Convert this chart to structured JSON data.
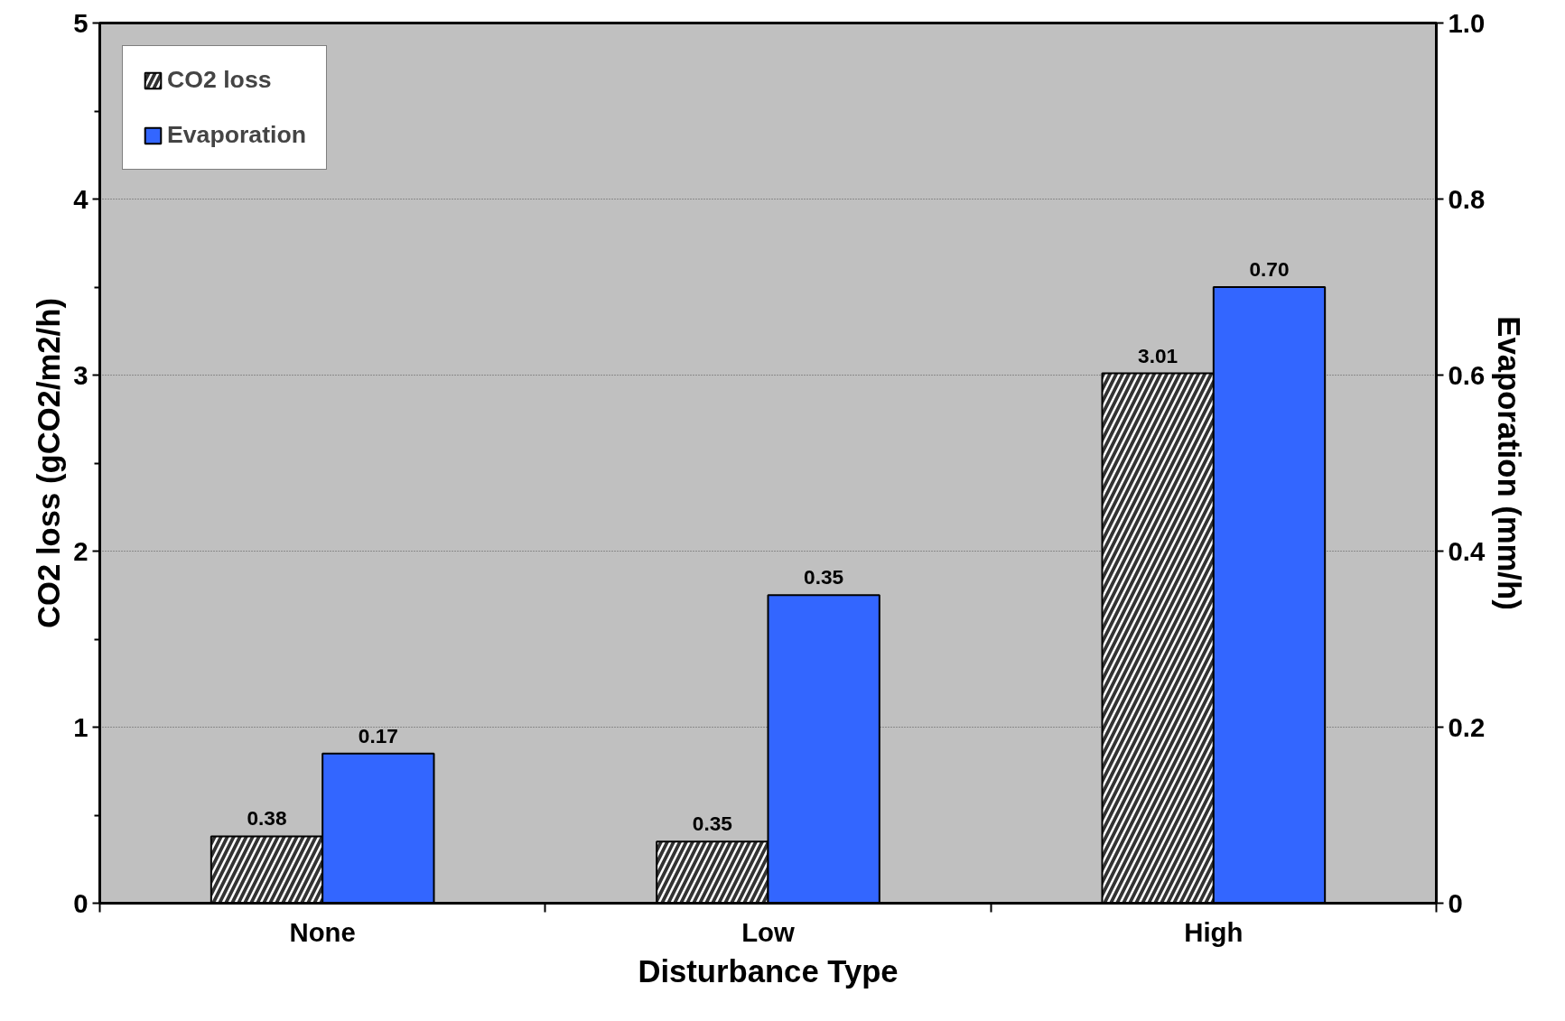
{
  "chart_data": {
    "type": "bar",
    "xlabel": "Disturbance Type",
    "ylabel": "CO2 loss (gCO2/m2/h)",
    "y2label": "Evaporation (mm/h)",
    "categories": [
      "None",
      "Low",
      "High"
    ],
    "series": [
      {
        "name": "CO2 loss",
        "color": "#333333",
        "values": [
          0.38,
          0.35,
          3.01
        ],
        "value_labels": [
          "0.38",
          "0.35",
          "3.01"
        ]
      },
      {
        "name": "Evaporation",
        "color": "#3366ff",
        "values": [
          0.17,
          0.35,
          0.7
        ],
        "value_labels": [
          "0.17",
          "0.35",
          "0.70"
        ],
        "axis": "y2"
      }
    ],
    "ylim": [
      0,
      5
    ],
    "yticks": [
      0,
      {
        "value": 0.5,
        "label": null
      },
      1,
      {
        "value": 1.5,
        "label": null
      },
      2,
      {
        "value": 2.5,
        "label": null
      },
      3,
      {
        "value": 3.5,
        "label": null
      },
      4,
      {
        "value": 4.5,
        "label": null
      },
      5
    ],
    "y2lim": [
      0,
      1.0
    ],
    "y2ticks": [
      0,
      {
        "value": 0.2,
        "label": "0.2"
      },
      {
        "value": 0.4,
        "label": "0.4"
      },
      {
        "value": 0.6,
        "label": "0.6"
      },
      {
        "value": 0.8,
        "label": "0.8"
      },
      {
        "value": 1.0,
        "label": "1.0"
      }
    ],
    "grid": "y",
    "legend": "top left"
  }
}
